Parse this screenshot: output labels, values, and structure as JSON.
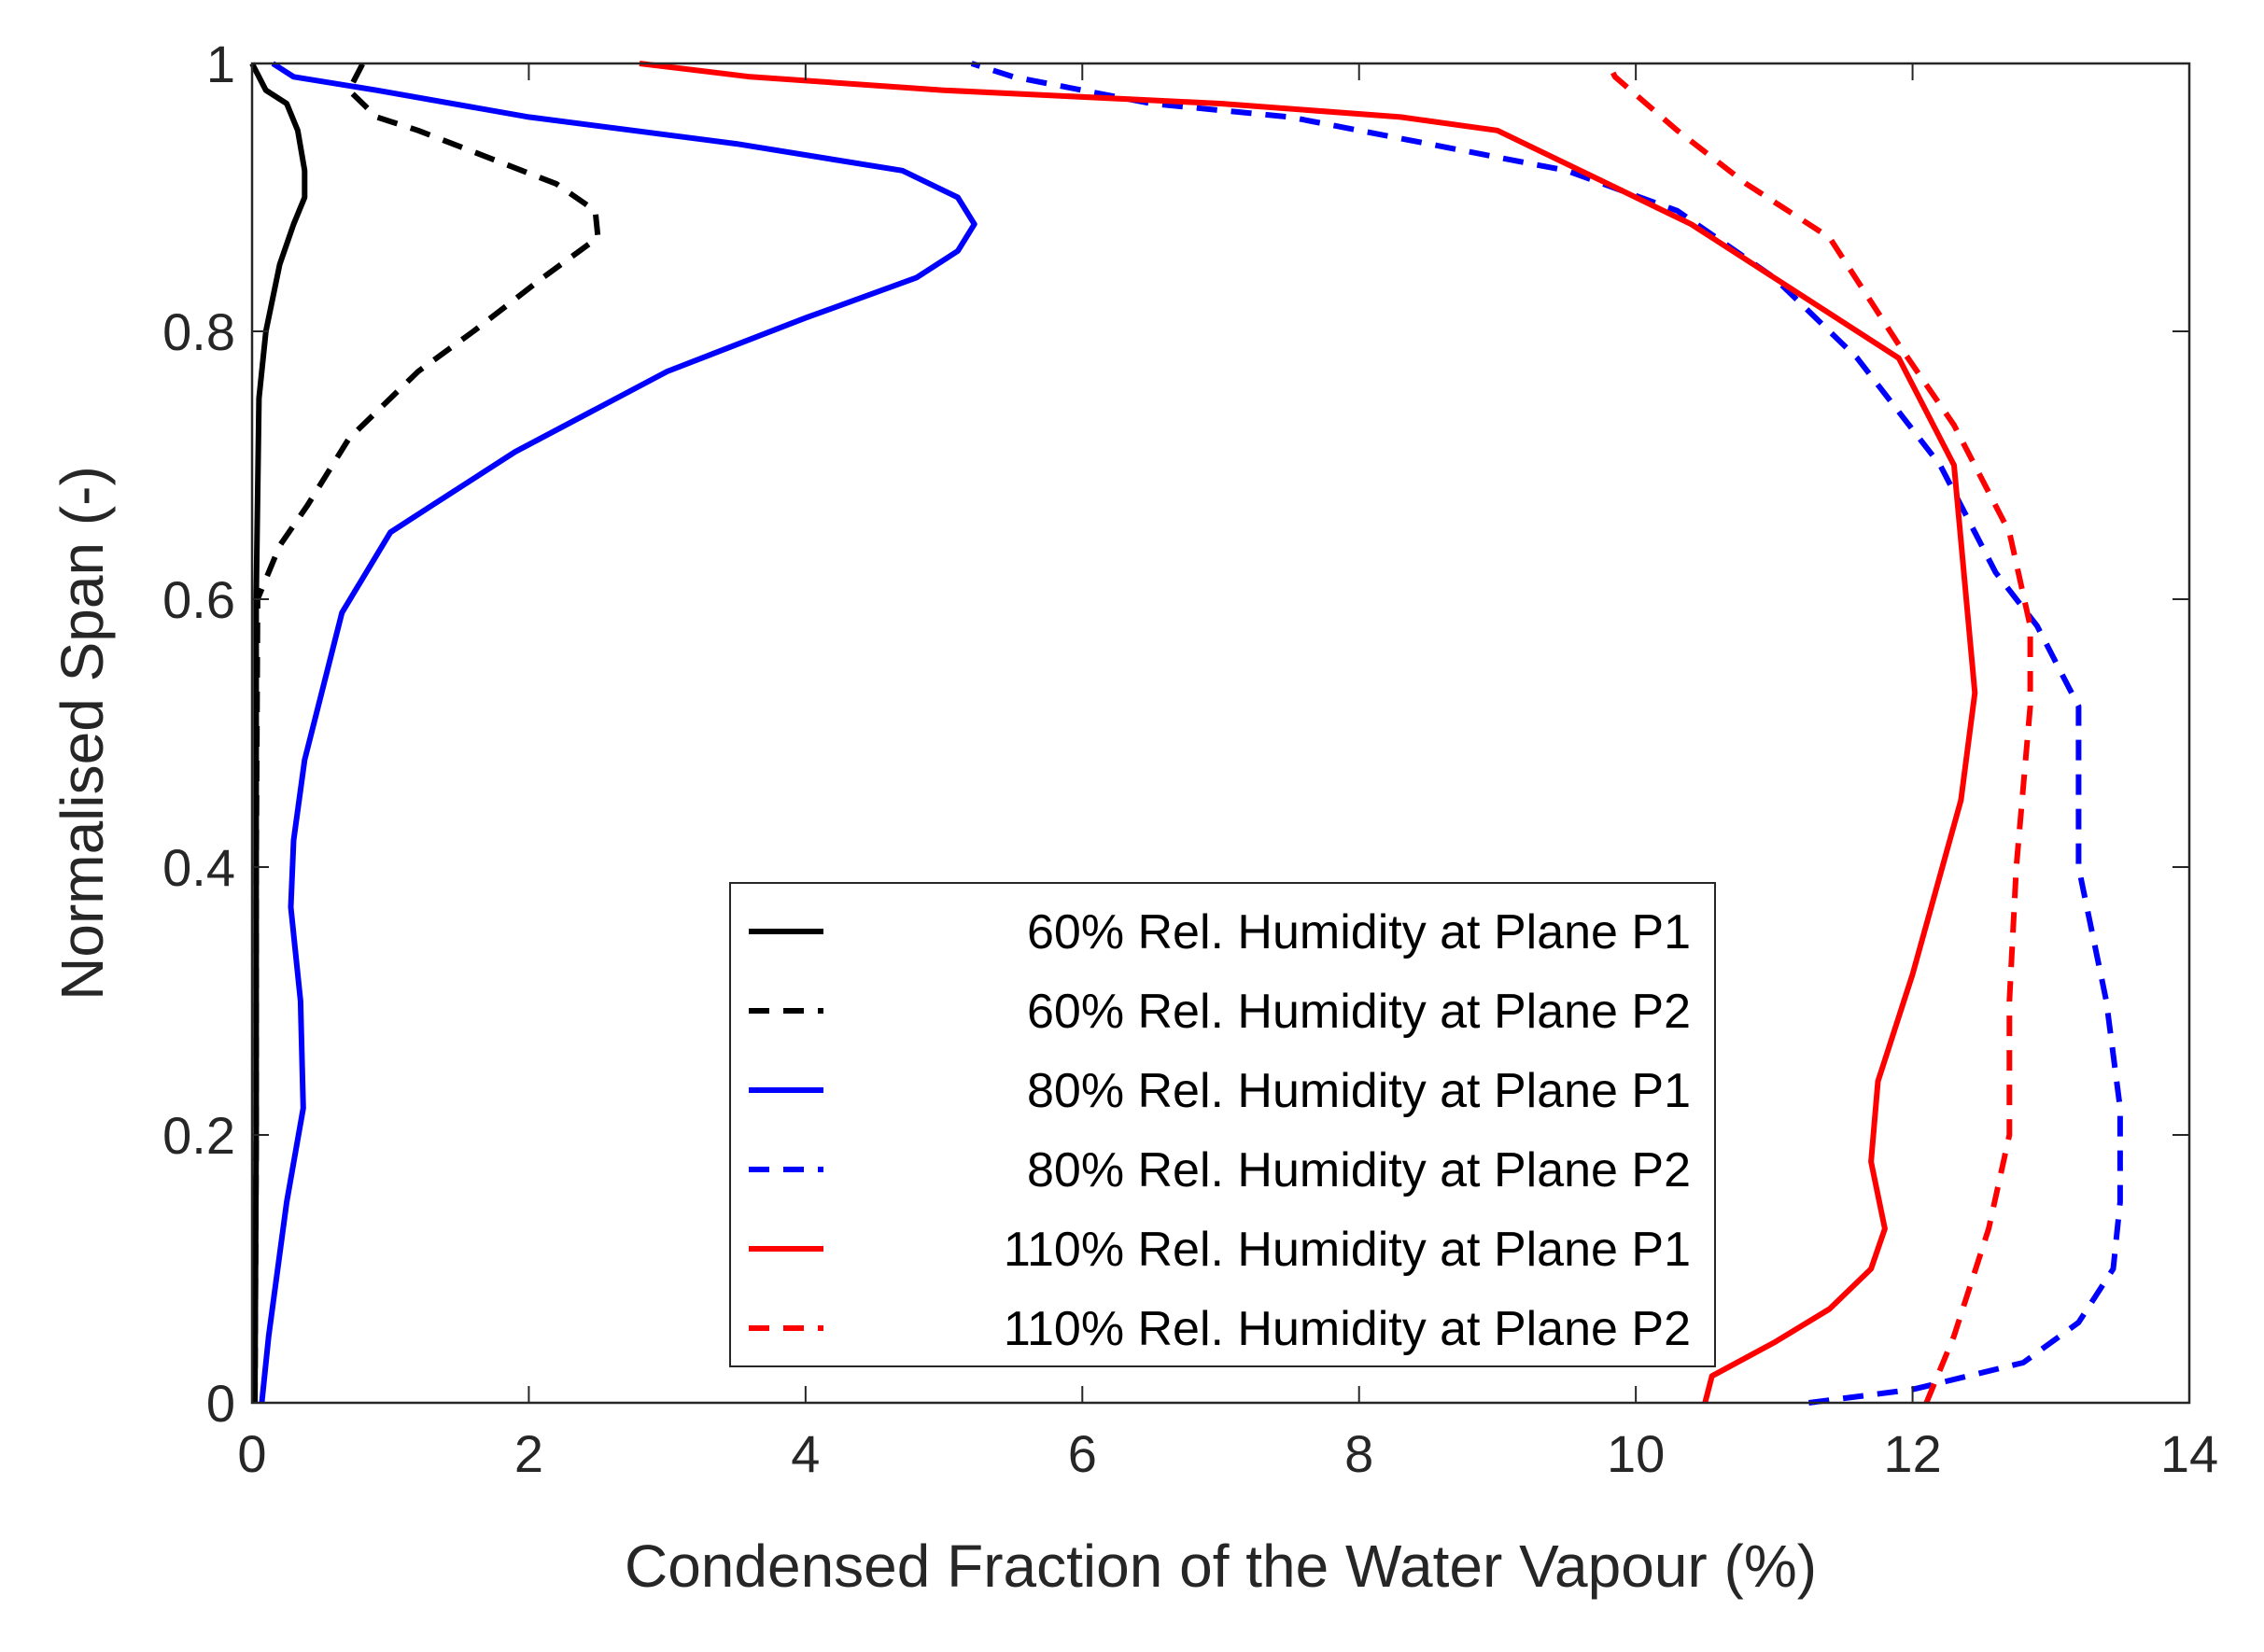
{
  "chart_data": {
    "type": "line",
    "title": "",
    "xlabel": "Condensed Fraction of the Water Vapour (%)",
    "ylabel": "Normalised Span (-)",
    "xlim": [
      0,
      14
    ],
    "ylim": [
      0,
      1
    ],
    "xticks": [
      "0",
      "2",
      "4",
      "6",
      "8",
      "10",
      "12",
      "14"
    ],
    "yticks": [
      "0",
      "0.2",
      "0.4",
      "0.6",
      "0.8",
      "1"
    ],
    "legend_position": "bottom-center",
    "grid": false,
    "series": [
      {
        "name": "60% Rel. Humidity at Plane P1",
        "color": "#000000",
        "dash": "solid",
        "points": [
          [
            0.02,
            0
          ],
          [
            0.03,
            0.2
          ],
          [
            0.03,
            0.4
          ],
          [
            0.03,
            0.6
          ],
          [
            0.05,
            0.75
          ],
          [
            0.1,
            0.8
          ],
          [
            0.2,
            0.85
          ],
          [
            0.3,
            0.88
          ],
          [
            0.38,
            0.9
          ],
          [
            0.38,
            0.92
          ],
          [
            0.33,
            0.95
          ],
          [
            0.25,
            0.97
          ],
          [
            0.1,
            0.98
          ],
          [
            0.0,
            1.0
          ]
        ]
      },
      {
        "name": "60% Rel. Humidity at Plane P2",
        "color": "#000000",
        "dash": "dashed",
        "points": [
          [
            0.02,
            0
          ],
          [
            0.03,
            0.2
          ],
          [
            0.03,
            0.4
          ],
          [
            0.04,
            0.6
          ],
          [
            0.2,
            0.64
          ],
          [
            0.4,
            0.67
          ],
          [
            0.7,
            0.72
          ],
          [
            1.2,
            0.77
          ],
          [
            1.6,
            0.8
          ],
          [
            2.1,
            0.84
          ],
          [
            2.5,
            0.87
          ],
          [
            2.48,
            0.89
          ],
          [
            2.2,
            0.91
          ],
          [
            1.7,
            0.93
          ],
          [
            1.2,
            0.95
          ],
          [
            0.9,
            0.96
          ],
          [
            0.7,
            0.98
          ],
          [
            0.8,
            1.0
          ]
        ]
      },
      {
        "name": "80% Rel. Humidity at Plane P1",
        "color": "#0000ff",
        "dash": "solid",
        "points": [
          [
            0.07,
            0
          ],
          [
            0.12,
            0.05
          ],
          [
            0.25,
            0.15
          ],
          [
            0.37,
            0.22
          ],
          [
            0.35,
            0.3
          ],
          [
            0.28,
            0.37
          ],
          [
            0.3,
            0.42
          ],
          [
            0.38,
            0.48
          ],
          [
            0.65,
            0.59
          ],
          [
            1.0,
            0.65
          ],
          [
            1.3,
            0.67
          ],
          [
            1.9,
            0.71
          ],
          [
            3.0,
            0.77
          ],
          [
            4.0,
            0.81
          ],
          [
            4.8,
            0.84
          ],
          [
            5.1,
            0.86
          ],
          [
            5.22,
            0.88
          ],
          [
            5.1,
            0.9
          ],
          [
            4.7,
            0.92
          ],
          [
            3.5,
            0.94
          ],
          [
            2.0,
            0.96
          ],
          [
            0.9,
            0.98
          ],
          [
            0.3,
            0.99
          ],
          [
            0.15,
            1.0
          ]
        ]
      },
      {
        "name": "80% Rel. Humidity at Plane P2",
        "color": "#0000ff",
        "dash": "dashed",
        "points": [
          [
            11.25,
            0
          ],
          [
            12.0,
            0.01
          ],
          [
            12.8,
            0.03
          ],
          [
            13.2,
            0.06
          ],
          [
            13.45,
            0.1
          ],
          [
            13.5,
            0.15
          ],
          [
            13.5,
            0.22
          ],
          [
            13.4,
            0.3
          ],
          [
            13.2,
            0.4
          ],
          [
            13.2,
            0.52
          ],
          [
            12.9,
            0.58
          ],
          [
            12.6,
            0.62
          ],
          [
            12.2,
            0.7
          ],
          [
            11.6,
            0.78
          ],
          [
            11.0,
            0.84
          ],
          [
            10.3,
            0.89
          ],
          [
            9.5,
            0.92
          ],
          [
            8.5,
            0.94
          ],
          [
            7.5,
            0.96
          ],
          [
            6.5,
            0.97
          ],
          [
            5.5,
            0.99
          ],
          [
            5.2,
            1.0
          ]
        ]
      },
      {
        "name": "110% Rel. Humidity at Plane P1",
        "color": "#ff0000",
        "dash": "solid",
        "points": [
          [
            10.5,
            0
          ],
          [
            10.55,
            0.02
          ],
          [
            11.0,
            0.045
          ],
          [
            11.4,
            0.07
          ],
          [
            11.7,
            0.1
          ],
          [
            11.8,
            0.13
          ],
          [
            11.7,
            0.18
          ],
          [
            11.75,
            0.24
          ],
          [
            12.0,
            0.32
          ],
          [
            12.35,
            0.45
          ],
          [
            12.45,
            0.53
          ],
          [
            12.3,
            0.7
          ],
          [
            11.9,
            0.78
          ],
          [
            11.0,
            0.84
          ],
          [
            10.4,
            0.88
          ],
          [
            9.8,
            0.91
          ],
          [
            9.0,
            0.95
          ],
          [
            8.3,
            0.96
          ],
          [
            7.0,
            0.97
          ],
          [
            5.0,
            0.98
          ],
          [
            3.6,
            0.99
          ],
          [
            2.8,
            1.0
          ]
        ]
      },
      {
        "name": "110% Rel. Humidity at Plane P2",
        "color": "#ff0000",
        "dash": "dashed",
        "points": [
          [
            12.1,
            0
          ],
          [
            12.3,
            0.05
          ],
          [
            12.55,
            0.13
          ],
          [
            12.7,
            0.2
          ],
          [
            12.7,
            0.3
          ],
          [
            12.75,
            0.4
          ],
          [
            12.85,
            0.52
          ],
          [
            12.85,
            0.58
          ],
          [
            12.7,
            0.65
          ],
          [
            12.3,
            0.73
          ],
          [
            11.9,
            0.79
          ],
          [
            11.4,
            0.87
          ],
          [
            10.8,
            0.91
          ],
          [
            10.3,
            0.95
          ],
          [
            9.85,
            0.99
          ],
          [
            9.8,
            1.0
          ]
        ]
      }
    ]
  }
}
